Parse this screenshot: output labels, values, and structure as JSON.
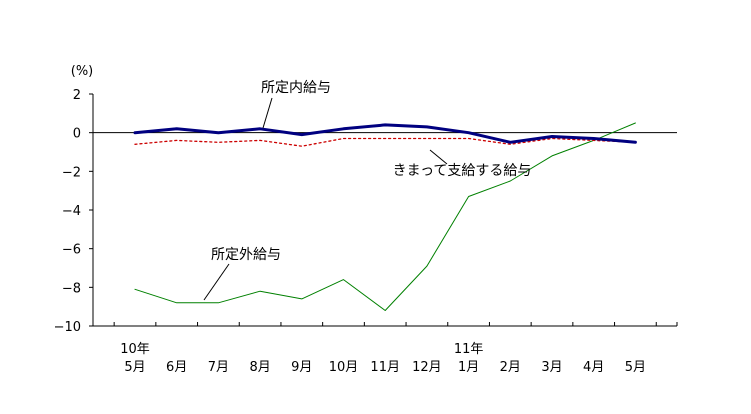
{
  "chart_data": {
    "type": "line",
    "ylabel": "(%)",
    "ylim": [
      -10,
      2
    ],
    "yticks": [
      2,
      0,
      -2,
      -4,
      -6,
      -8,
      -10
    ],
    "ytick_labels": [
      "2",
      "0",
      "−2",
      "−4",
      "−6",
      "−8",
      "−10"
    ],
    "grid": false,
    "legend": "none",
    "categories": [
      "5月",
      "6月",
      "7月",
      "8月",
      "9月",
      "10月",
      "11月",
      "12月",
      "1月",
      "2月",
      "3月",
      "4月",
      "5月"
    ],
    "year_labels": [
      {
        "index": 0,
        "text": "10年"
      },
      {
        "index": 8,
        "text": "11年"
      }
    ],
    "series": [
      {
        "name": "所定内給与",
        "color": "#000080",
        "style": "solid-thick",
        "values": [
          0.0,
          0.2,
          0.0,
          0.2,
          -0.1,
          0.2,
          0.4,
          0.3,
          0.0,
          -0.5,
          -0.2,
          -0.3,
          -0.5
        ]
      },
      {
        "name": "きまって支給する給与",
        "color": "#cc0000",
        "style": "dotted",
        "values": [
          -0.6,
          -0.4,
          -0.5,
          -0.4,
          -0.7,
          -0.3,
          -0.3,
          -0.3,
          -0.3,
          -0.6,
          -0.3,
          -0.4,
          -0.5
        ]
      },
      {
        "name": "所定外給与",
        "color": "#008000",
        "style": "solid-thin",
        "values": [
          -8.1,
          -8.8,
          -8.8,
          -8.2,
          -8.6,
          -7.6,
          -9.2,
          -6.9,
          -3.3,
          -2.5,
          -1.2,
          -0.4,
          0.5
        ]
      }
    ]
  }
}
